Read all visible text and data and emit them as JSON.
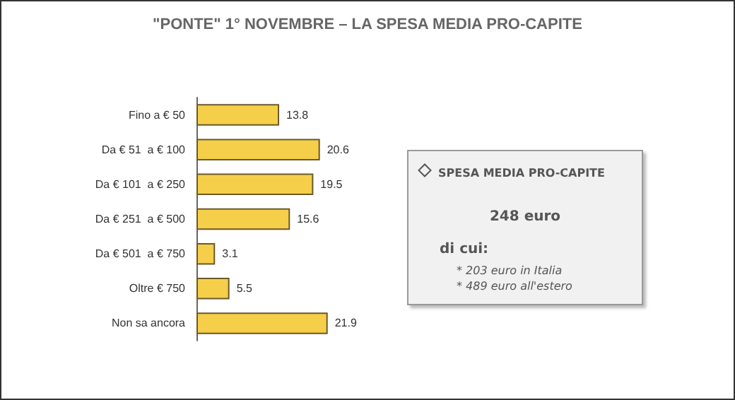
{
  "chart_data": {
    "type": "bar",
    "orientation": "horizontal",
    "title": "\"PONTE\" 1° NOVEMBRE – LA SPESA MEDIA PRO-CAPITE",
    "categories": [
      "Fino a € 50",
      "Da € 51  a € 100",
      "Da € 101  a € 250",
      "Da € 251  a € 500",
      "Da € 501  a € 750",
      "Oltre € 750",
      "Non sa ancora"
    ],
    "values": [
      13.8,
      20.6,
      19.5,
      15.6,
      3.1,
      5.5,
      21.9
    ],
    "color": "#f5cf4a",
    "data_labels": true,
    "tick_labels": "y",
    "annotations": [
      "SPESA MEDIA PRO-CAPITE",
      "248 euro",
      "di cui:",
      "* 203 euro in Italia",
      "* 489 euro all'estero"
    ]
  }
}
